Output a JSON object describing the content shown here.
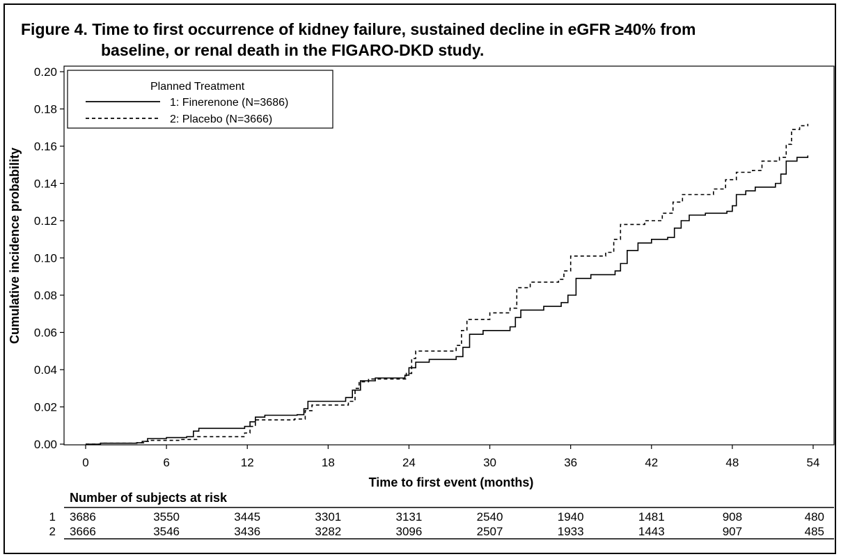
{
  "figure": {
    "title_line1": "Figure 4. Time to first occurrence of kidney failure, sustained decline in eGFR ≥40% from",
    "title_line2": "baseline, or renal death in the FIGARO-DKD study."
  },
  "chart_data": {
    "type": "line",
    "title": "Figure 4. Time to first occurrence of kidney failure, sustained decline in eGFR ≥40% from baseline, or renal death in the FIGARO-DKD study.",
    "xlabel": "Time to first event (months)",
    "ylabel": "Cumulative incidence probability",
    "xlim": [
      0,
      54
    ],
    "ylim": [
      0,
      0.2
    ],
    "xticks": [
      0,
      6,
      12,
      18,
      24,
      30,
      36,
      42,
      48,
      54
    ],
    "yticks": [
      "0.00",
      "0.02",
      "0.04",
      "0.06",
      "0.08",
      "0.10",
      "0.12",
      "0.14",
      "0.16",
      "0.18",
      "0.20"
    ],
    "grid": false,
    "legend": {
      "title": "Planned Treatment",
      "placement": "top-left",
      "entries": [
        "1: Finerenone (N=3686)",
        "2: Placebo (N=3666)"
      ]
    },
    "series": [
      {
        "name": "1: Finerenone (N=3686)",
        "style": "solid",
        "points": [
          [
            0,
            0
          ],
          [
            1,
            0
          ],
          [
            1.1,
            0.0005
          ],
          [
            3.8,
            0.0007
          ],
          [
            4.2,
            0.0015
          ],
          [
            4.6,
            0.003
          ],
          [
            6,
            0.0035
          ],
          [
            7.5,
            0.004
          ],
          [
            8,
            0.007
          ],
          [
            8.4,
            0.0085
          ],
          [
            11.8,
            0.0095
          ],
          [
            12.2,
            0.012
          ],
          [
            12.6,
            0.0145
          ],
          [
            13.3,
            0.0155
          ],
          [
            15.7,
            0.0158
          ],
          [
            16.2,
            0.019
          ],
          [
            16.5,
            0.023
          ],
          [
            19.3,
            0.025
          ],
          [
            19.8,
            0.029
          ],
          [
            20.4,
            0.034
          ],
          [
            21.5,
            0.0355
          ],
          [
            23.7,
            0.037
          ],
          [
            24,
            0.041
          ],
          [
            24.5,
            0.044
          ],
          [
            25.5,
            0.0455
          ],
          [
            27.5,
            0.047
          ],
          [
            28,
            0.052
          ],
          [
            28.5,
            0.059
          ],
          [
            29.5,
            0.061
          ],
          [
            31.5,
            0.063
          ],
          [
            31.9,
            0.068
          ],
          [
            32.3,
            0.072
          ],
          [
            34,
            0.074
          ],
          [
            35.3,
            0.076
          ],
          [
            35.8,
            0.08
          ],
          [
            36.4,
            0.089
          ],
          [
            37.5,
            0.091
          ],
          [
            39.3,
            0.093
          ],
          [
            39.7,
            0.097
          ],
          [
            40.2,
            0.104
          ],
          [
            41,
            0.108
          ],
          [
            42,
            0.11
          ],
          [
            43.2,
            0.111
          ],
          [
            43.7,
            0.116
          ],
          [
            44.2,
            0.12
          ],
          [
            44.8,
            0.123
          ],
          [
            46,
            0.124
          ],
          [
            47.6,
            0.125
          ],
          [
            48,
            0.128
          ],
          [
            48.3,
            0.134
          ],
          [
            49,
            0.136
          ],
          [
            49.7,
            0.138
          ],
          [
            51.2,
            0.14
          ],
          [
            51.6,
            0.145
          ],
          [
            52,
            0.152
          ],
          [
            52.8,
            0.154
          ],
          [
            53.6,
            0.155
          ]
        ]
      },
      {
        "name": "2: Placebo (N=3666)",
        "style": "dashed",
        "points": [
          [
            0,
            0
          ],
          [
            1,
            0
          ],
          [
            1.1,
            0.0005
          ],
          [
            3.8,
            0.0007
          ],
          [
            4.4,
            0.0015
          ],
          [
            4.7,
            0.002
          ],
          [
            7,
            0.0025
          ],
          [
            8.3,
            0.004
          ],
          [
            11.8,
            0.006
          ],
          [
            12.2,
            0.0095
          ],
          [
            12.6,
            0.013
          ],
          [
            15.5,
            0.0135
          ],
          [
            16.3,
            0.018
          ],
          [
            16.8,
            0.021
          ],
          [
            19.5,
            0.023
          ],
          [
            20,
            0.03
          ],
          [
            20.3,
            0.0335
          ],
          [
            21,
            0.035
          ],
          [
            23.8,
            0.038
          ],
          [
            24.2,
            0.046
          ],
          [
            24.5,
            0.05
          ],
          [
            27.5,
            0.053
          ],
          [
            27.9,
            0.061
          ],
          [
            28.3,
            0.067
          ],
          [
            30,
            0.0705
          ],
          [
            31.5,
            0.073
          ],
          [
            32,
            0.084
          ],
          [
            33,
            0.087
          ],
          [
            35.1,
            0.0885
          ],
          [
            35.5,
            0.093
          ],
          [
            36,
            0.101
          ],
          [
            38.6,
            0.103
          ],
          [
            39.2,
            0.11
          ],
          [
            39.7,
            0.118
          ],
          [
            41.5,
            0.12
          ],
          [
            42.8,
            0.124
          ],
          [
            43.6,
            0.13
          ],
          [
            44.3,
            0.134
          ],
          [
            46.6,
            0.137
          ],
          [
            47.5,
            0.142
          ],
          [
            48.3,
            0.146
          ],
          [
            49.5,
            0.147
          ],
          [
            50.2,
            0.152
          ],
          [
            51.5,
            0.154
          ],
          [
            52,
            0.161
          ],
          [
            52.4,
            0.169
          ],
          [
            53,
            0.171
          ],
          [
            53.6,
            0.172
          ]
        ]
      }
    ],
    "risk_table": {
      "title": "Number of subjects at risk",
      "rows": [
        {
          "label": "1",
          "values": [
            "3686",
            "3550",
            "3445",
            "3301",
            "3131",
            "2540",
            "1940",
            "1481",
            "908",
            "480"
          ]
        },
        {
          "label": "2",
          "values": [
            "3666",
            "3546",
            "3436",
            "3282",
            "3096",
            "2507",
            "1933",
            "1443",
            "907",
            "485"
          ]
        }
      ]
    }
  }
}
